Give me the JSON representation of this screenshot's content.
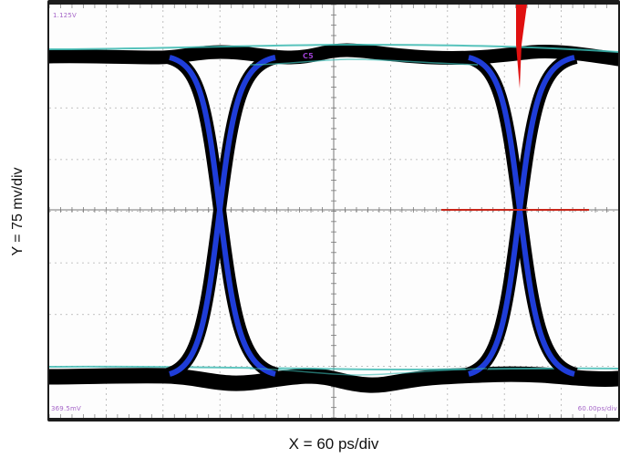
{
  "axis_labels": {
    "y": "Y = 75 mv/div",
    "x": "X = 60 ps/div"
  },
  "scope": {
    "top_voltage": "1.125V",
    "bottom_voltage": "369.5mV",
    "time_scale": "60.00ps/div",
    "channel": "C5"
  },
  "colors": {
    "trace_core": "#000000",
    "trace_blue": "#1f3dd8",
    "trace_cyan": "#3ab8b0",
    "grid": "#9a9a9a",
    "trigger_marker": "#e01010",
    "crosshair": "#c8261a",
    "scope_text": "#a565c8"
  }
}
